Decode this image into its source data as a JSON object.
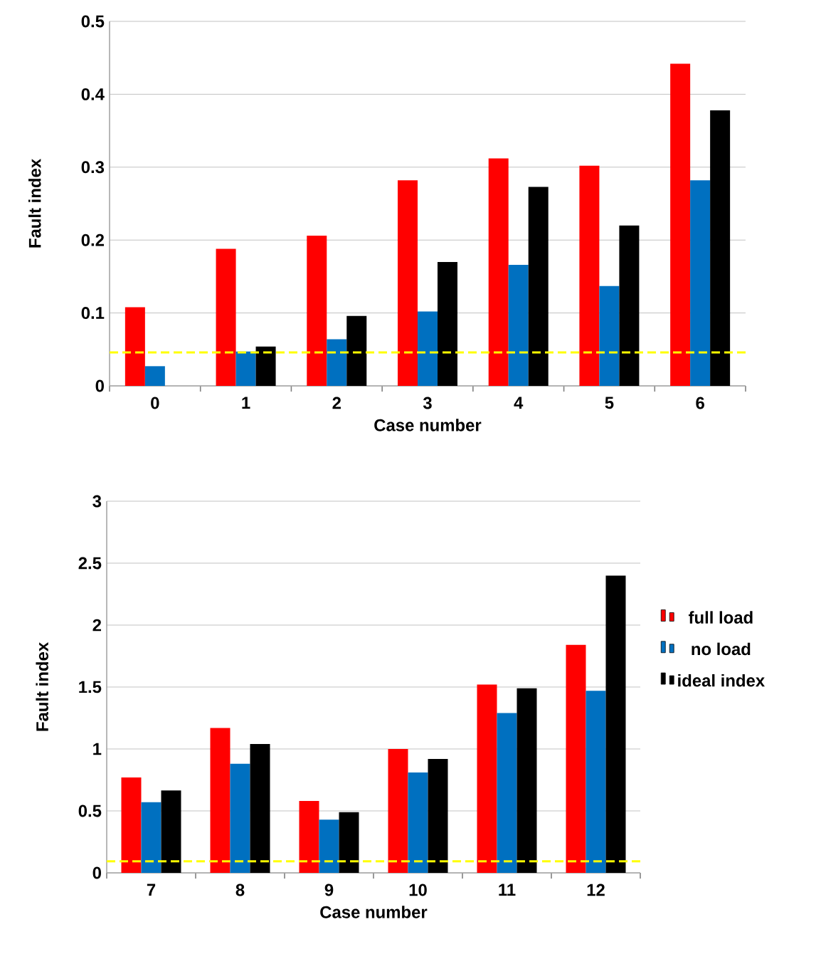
{
  "chart_data": [
    {
      "type": "bar",
      "xlabel": "Case number",
      "ylabel": "Fault index",
      "categories": [
        "0",
        "1",
        "2",
        "3",
        "4",
        "5",
        "6"
      ],
      "series": [
        {
          "color": "#ff0000",
          "values": [
            0.108,
            0.188,
            0.206,
            0.282,
            0.312,
            0.302,
            0.442
          ]
        },
        {
          "color": "#0070c0",
          "values": [
            0.027,
            0.047,
            0.064,
            0.102,
            0.166,
            0.137,
            0.282
          ]
        },
        {
          "color": "#000000",
          "values": [
            null,
            0.054,
            0.096,
            0.17,
            0.273,
            0.22,
            0.378
          ]
        }
      ],
      "ylim": [
        0,
        0.5
      ],
      "yticks": [
        0,
        0.1,
        0.2,
        0.3,
        0.4,
        0.5
      ],
      "grid": "y",
      "legend": false,
      "ref_lines": [
        {
          "axis": "y",
          "value": 0.046,
          "color": "#ffff00",
          "line_style": "dashed"
        }
      ]
    },
    {
      "type": "bar",
      "xlabel": "Case number",
      "ylabel": "Fault index",
      "categories": [
        "7",
        "8",
        "9",
        "10",
        "11",
        "12"
      ],
      "series": [
        {
          "name": "full load",
          "color": "#ff0000",
          "values": [
            0.77,
            1.17,
            0.58,
            1.0,
            1.52,
            1.84
          ]
        },
        {
          "name": "no load",
          "color": "#0070c0",
          "values": [
            0.57,
            0.88,
            0.43,
            0.81,
            1.29,
            1.47
          ]
        },
        {
          "name": "ideal index",
          "color": "#000000",
          "values": [
            0.665,
            1.04,
            0.49,
            0.92,
            1.49,
            2.4
          ]
        }
      ],
      "ylim": [
        0,
        3
      ],
      "yticks": [
        0,
        0.5,
        1,
        1.5,
        2,
        2.5,
        3
      ],
      "grid": "y",
      "legend": "right",
      "ref_lines": [
        {
          "axis": "y",
          "value": 0.094,
          "color": "#ffff00",
          "line_style": "dashed"
        }
      ]
    }
  ]
}
